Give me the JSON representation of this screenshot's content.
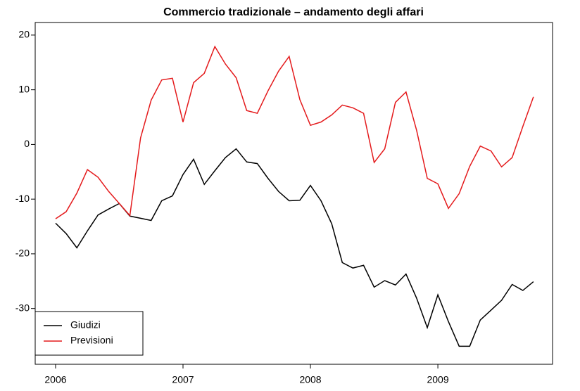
{
  "chart_data": {
    "type": "line",
    "title": "Commercio tradizionale – andamento degli affari",
    "x": [
      2006,
      2006.083,
      2006.167,
      2006.25,
      2006.333,
      2006.417,
      2006.5,
      2006.583,
      2006.667,
      2006.75,
      2006.833,
      2006.917,
      2007,
      2007.083,
      2007.167,
      2007.25,
      2007.333,
      2007.417,
      2007.5,
      2007.583,
      2007.667,
      2007.75,
      2007.833,
      2007.917,
      2008,
      2008.083,
      2008.167,
      2008.25,
      2008.333,
      2008.417,
      2008.5,
      2008.583,
      2008.667,
      2008.75,
      2008.833,
      2008.917,
      2009,
      2009.083,
      2009.167,
      2009.25,
      2009.333,
      2009.417,
      2009.5,
      2009.583,
      2009.667,
      2009.75
    ],
    "series": [
      {
        "name": "Giudizi",
        "color": "#000000",
        "values": [
          -14.4,
          -16.3,
          -18.9,
          -15.8,
          -12.9,
          -11.8,
          -10.8,
          -13.1,
          -13.5,
          -13.9,
          -10.3,
          -9.4,
          -5.5,
          -2.7,
          -7.3,
          -4.8,
          -2.4,
          -0.8,
          -3.2,
          -3.5,
          -6.2,
          -8.6,
          -10.3,
          -10.2,
          -7.5,
          -10.3,
          -14.5,
          -21.6,
          -22.6,
          -22.1,
          -26.1,
          -24.9,
          -25.7,
          -23.7,
          -28.1,
          -33.5,
          -27.5,
          -32.4,
          -36.9,
          -36.9,
          -32.1,
          -30.3,
          -28.5,
          -25.6,
          -26.7,
          -25.1
        ]
      },
      {
        "name": "Previsioni",
        "color": "#e41a1c",
        "values": [
          -13.6,
          -12.3,
          -8.9,
          -4.6,
          -6.0,
          -8.6,
          -10.8,
          -13.0,
          1.2,
          8.1,
          11.8,
          12.1,
          4.1,
          11.3,
          13.0,
          17.9,
          14.7,
          12.2,
          6.2,
          5.7,
          9.8,
          13.4,
          16.1,
          8.2,
          3.5,
          4.1,
          5.4,
          7.2,
          6.7,
          5.7,
          -3.3,
          -0.8,
          7.7,
          9.6,
          2.6,
          -6.2,
          -7.2,
          -11.7,
          -9.0,
          -4.0,
          -0.3,
          -1.2,
          -4.1,
          -2.4,
          3.3,
          8.7
        ]
      }
    ],
    "xlim": [
      2005.84,
      2009.9
    ],
    "xticks": [
      2006,
      2007,
      2008,
      2009
    ],
    "ylim": [
      -40.2,
      22.3
    ],
    "yticks": [
      20,
      10,
      0,
      -10,
      -20,
      -30
    ],
    "legend": "bottomleft"
  }
}
